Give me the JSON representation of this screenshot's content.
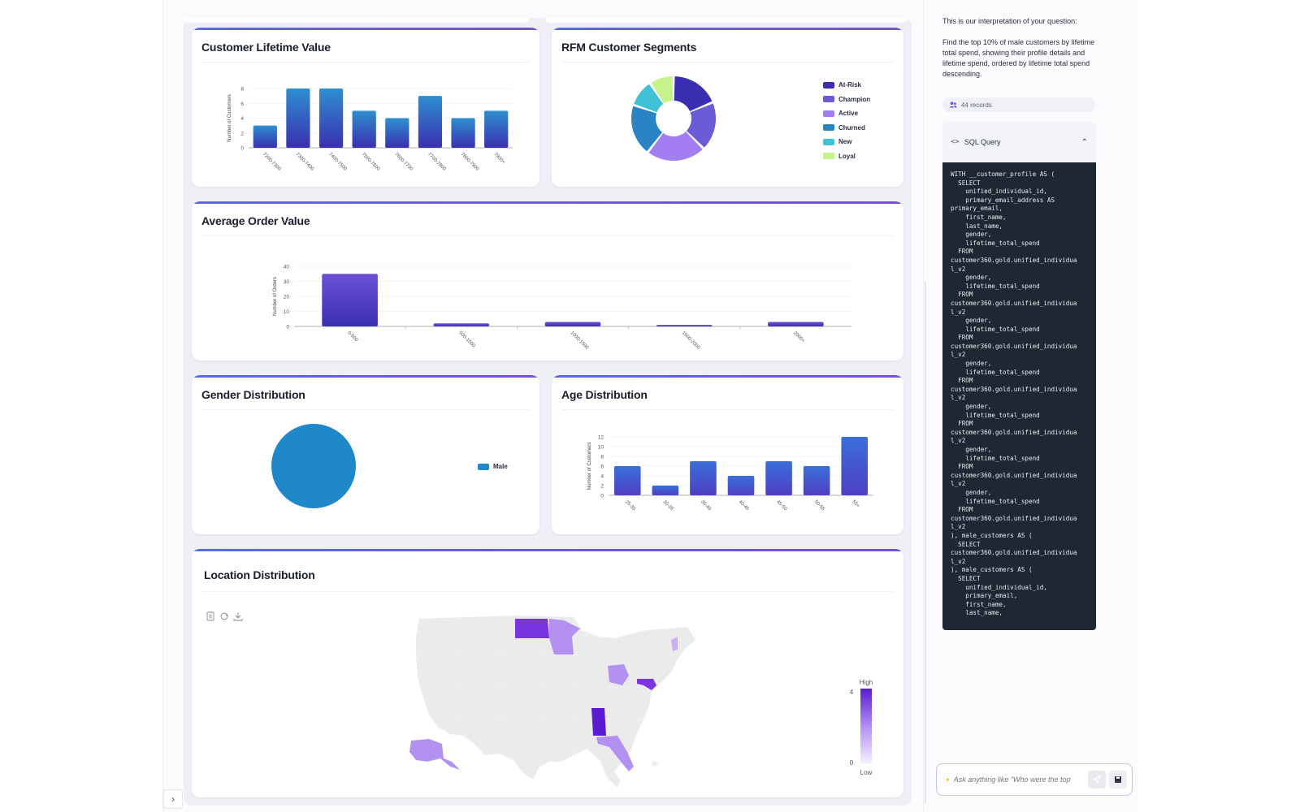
{
  "colors": {
    "accent": "#6d4fd8",
    "bar_top": "#2f8fd0",
    "bar_bottom": "#3a2fb0",
    "aov_bar": "#5a40c8",
    "gender_pie": "#1f88c8",
    "map_empty": "#ebebeb",
    "map_high": "#5b1bd0",
    "map_low": "#f5f0ff"
  },
  "dashboard": {
    "clv": {
      "title": "Customer Lifetime Value",
      "chart_data": {
        "type": "bar",
        "ylabel": "Number of Customers",
        "categories": [
          "7200-7300",
          "7300-7400",
          "7400-7500",
          "7500-7600",
          "7600-7700",
          "7700-7800",
          "7800-7900",
          "7900+"
        ],
        "values": [
          3,
          8,
          8,
          5,
          4,
          7,
          4,
          5
        ],
        "yticks": [
          0,
          2,
          4,
          6,
          8
        ],
        "ylim": [
          0,
          8
        ]
      }
    },
    "rfm": {
      "title": "RFM Customer Segments",
      "chart_data": {
        "type": "pie",
        "labels": [
          "At-Risk",
          "Champion",
          "Active",
          "Churned",
          "New",
          "Loyal"
        ],
        "values": [
          18,
          18,
          22,
          19,
          10,
          9
        ],
        "colors": [
          "#3a2fb0",
          "#6b5bd6",
          "#a27ef2",
          "#2a83c2",
          "#3fc1d6",
          "#c5f28b"
        ]
      }
    },
    "aov": {
      "title": "Average Order Value",
      "chart_data": {
        "type": "bar",
        "ylabel": "Number of Orders",
        "categories": [
          "0-500",
          "500-1000",
          "1000-1500",
          "1500-2000",
          "2000+"
        ],
        "values": [
          35,
          2,
          3,
          1,
          3
        ],
        "yticks": [
          0,
          10,
          20,
          30,
          40
        ],
        "ylim": [
          0,
          40
        ]
      }
    },
    "gender": {
      "title": "Gender Distribution",
      "chart_data": {
        "type": "pie",
        "labels": [
          "Male"
        ],
        "values": [
          44
        ],
        "colors": [
          "#1f88c8"
        ]
      }
    },
    "age": {
      "title": "Age Distribution",
      "chart_data": {
        "type": "bar",
        "ylabel": "Number of Customers",
        "categories": [
          "25-30",
          "30-35",
          "35-40",
          "40-45",
          "45-50",
          "50-55",
          "55+"
        ],
        "values": [
          6,
          2,
          7,
          4,
          7,
          6,
          12
        ],
        "yticks": [
          0,
          2,
          4,
          6,
          8,
          10,
          12
        ],
        "ylim": [
          0,
          12
        ]
      }
    },
    "location": {
      "title": "Location Distribution",
      "legend_high": "High",
      "legend_low": "Low",
      "legend_max": "4",
      "legend_min": "0",
      "highlighted_states": {
        "ND": 3,
        "MN": 2,
        "AK": 2,
        "OH": 2,
        "MD": 3,
        "AL": 4,
        "FL": 2,
        "VT": 1
      }
    }
  },
  "sidebar": {
    "interpretation_intro": "This is our interpretation of your question:",
    "interpretation": "Find the top 10% of male customers by lifetime total spend, showing their profile details and lifetime spend, ordered by lifetime total spend descending.",
    "records": "44 records",
    "sql_title": "SQL Query",
    "sql_code": "WITH __customer_profile AS (\n  SELECT\n    unified_individual_id,\n    primary_email_address AS\nprimary_email,\n    first_name,\n    last_name,\n    gender,\n    lifetime_total_spend\n  FROM\ncustomer360.gold.unified_individua\nl_v2\n    gender,\n    lifetime_total_spend\n  FROM\ncustomer360.gold.unified_individua\nl_v2\n    gender,\n    lifetime_total_spend\n  FROM\ncustomer360.gold.unified_individua\nl_v2\n    gender,\n    lifetime_total_spend\n  FROM\ncustomer360.gold.unified_individua\nl_v2\n    gender,\n    lifetime_total_spend\n  FROM\ncustomer360.gold.unified_individua\nl_v2\n    gender,\n    lifetime_total_spend\n  FROM\ncustomer360.gold.unified_individua\nl_v2\n    gender,\n    lifetime_total_spend\n  FROM\ncustomer360.gold.unified_individua\nl_v2\n), male_customers AS (\n  SELECT\ncustomer360.gold.unified_individua\nl_v2\n), male_customers AS (\n  SELECT\n    unified_individual_id,\n    primary_email,\n    first_name,\n    last_name,",
    "chat_placeholder": "Ask anything like \"Who were the top"
  }
}
